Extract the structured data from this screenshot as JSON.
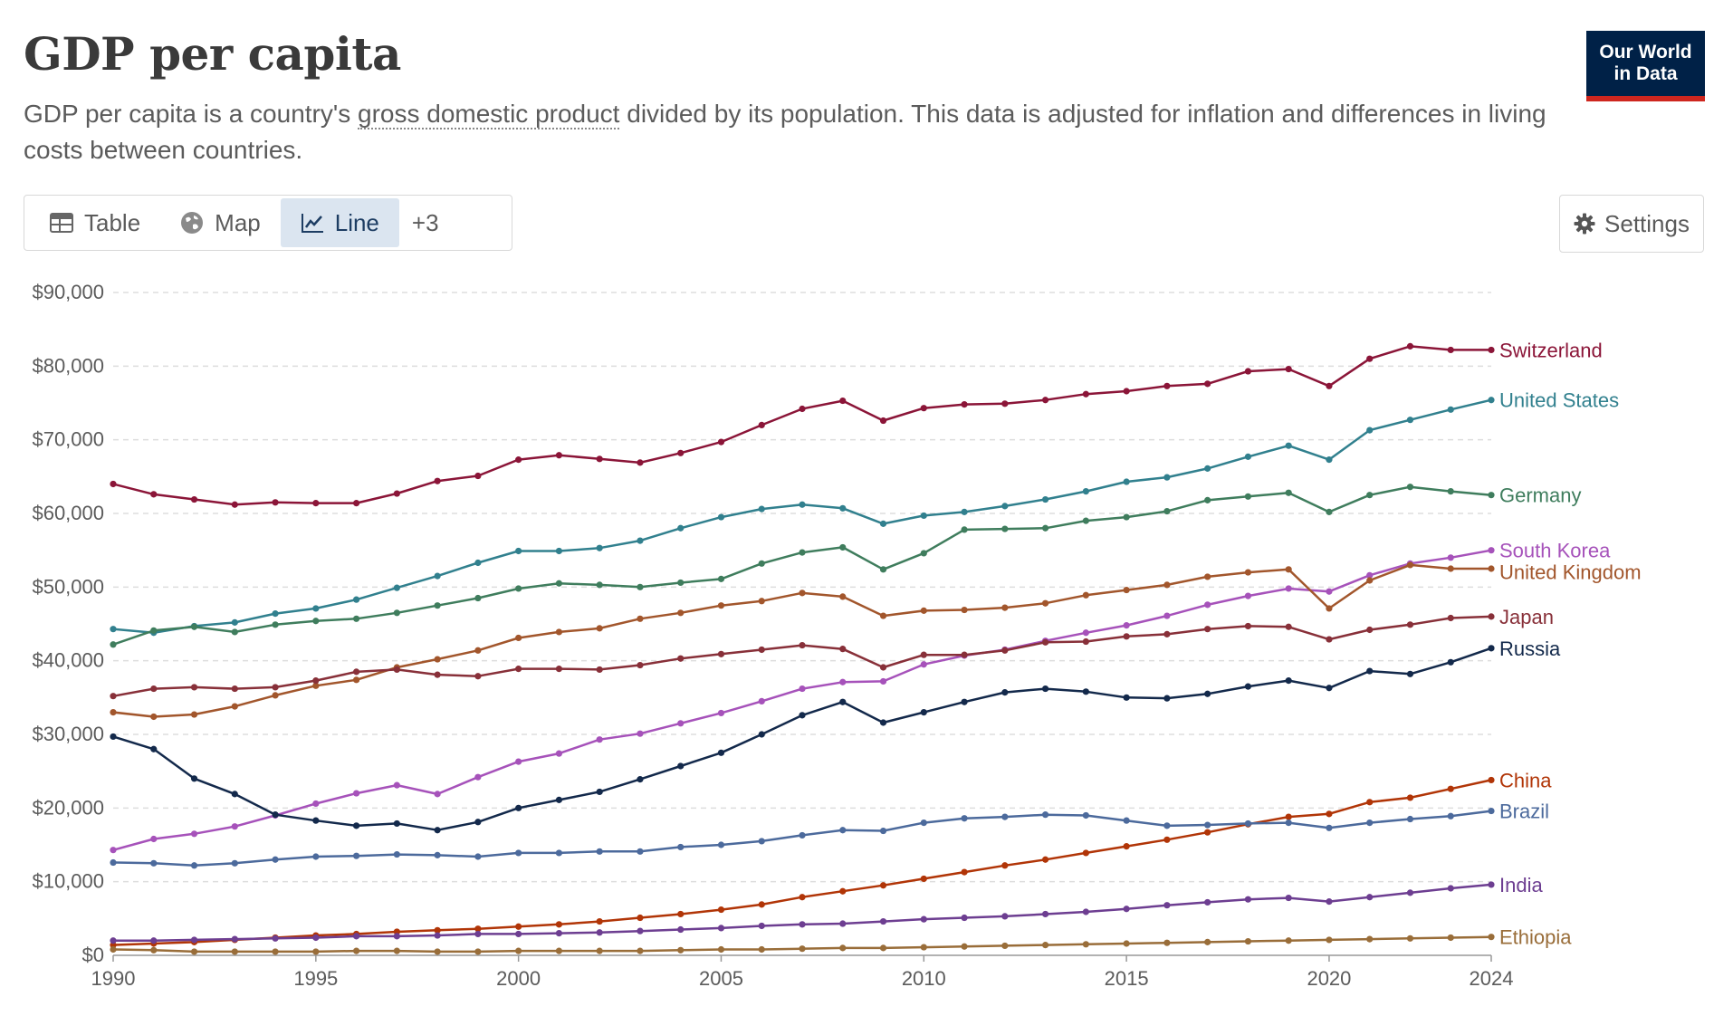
{
  "header": {
    "title": "GDP per capita",
    "subtitle_pre": "GDP per capita is a country's ",
    "subtitle_link": "gross domestic product",
    "subtitle_post": " divided by its population. This data is adjusted for inflation and differences in living costs between countries.",
    "logo_line1": "Our World",
    "logo_line2": "in Data"
  },
  "tabs": {
    "table": "Table",
    "map": "Map",
    "line": "Line",
    "more": "+3"
  },
  "settings_label": "Settings",
  "chart_data": {
    "type": "line",
    "title": "GDP per capita",
    "xlabel": "",
    "ylabel": "",
    "ylim": [
      0,
      90000
    ],
    "xlim": [
      1990,
      2024
    ],
    "yticks": [
      0,
      10000,
      20000,
      30000,
      40000,
      50000,
      60000,
      70000,
      80000,
      90000
    ],
    "ytick_labels": [
      "$0",
      "$10,000",
      "$20,000",
      "$30,000",
      "$40,000",
      "$50,000",
      "$60,000",
      "$70,000",
      "$80,000",
      "$90,000"
    ],
    "xticks": [
      1990,
      1995,
      2000,
      2005,
      2010,
      2015,
      2020,
      2024
    ],
    "xtick_labels": [
      "1990",
      "1995",
      "2000",
      "2005",
      "2010",
      "2015",
      "2020",
      "2024"
    ],
    "grid": true,
    "x": [
      1990,
      1991,
      1992,
      1993,
      1994,
      1995,
      1996,
      1997,
      1998,
      1999,
      2000,
      2001,
      2002,
      2003,
      2004,
      2005,
      2006,
      2007,
      2008,
      2009,
      2010,
      2011,
      2012,
      2013,
      2014,
      2015,
      2016,
      2017,
      2018,
      2019,
      2020,
      2021,
      2022,
      2023,
      2024
    ],
    "series": [
      {
        "name": "Switzerland",
        "color": "#8b1538",
        "values": [
          64000,
          62600,
          61900,
          61200,
          61500,
          61400,
          61400,
          62700,
          64400,
          65100,
          67300,
          67900,
          67400,
          66900,
          68200,
          69700,
          72000,
          74200,
          75300,
          72600,
          74300,
          74800,
          74900,
          75400,
          76200,
          76600,
          77300,
          77600,
          79300,
          79600,
          77300,
          81000,
          82700,
          82200,
          82200
        ]
      },
      {
        "name": "United States",
        "color": "#31808e",
        "values": [
          44300,
          43800,
          44700,
          45200,
          46400,
          47100,
          48300,
          49900,
          51500,
          53300,
          54900,
          54900,
          55300,
          56300,
          58000,
          59500,
          60600,
          61200,
          60700,
          58600,
          59700,
          60200,
          61000,
          61900,
          63000,
          64300,
          64900,
          66100,
          67700,
          69200,
          67300,
          71300,
          72700,
          74100,
          75400
        ]
      },
      {
        "name": "Germany",
        "color": "#3f7d5d",
        "values": [
          42200,
          44100,
          44600,
          43900,
          44900,
          45400,
          45700,
          46500,
          47500,
          48500,
          49800,
          50500,
          50300,
          50000,
          50600,
          51100,
          53200,
          54700,
          55400,
          52400,
          54600,
          57800,
          57900,
          58000,
          59000,
          59500,
          60300,
          61800,
          62300,
          62800,
          60200,
          62500,
          63600,
          63000,
          62500
        ]
      },
      {
        "name": "South Korea",
        "color": "#a652ba",
        "values": [
          14300,
          15800,
          16500,
          17500,
          19000,
          20600,
          22000,
          23100,
          21900,
          24200,
          26300,
          27400,
          29300,
          30100,
          31500,
          32900,
          34500,
          36200,
          37100,
          37200,
          39500,
          40700,
          41500,
          42700,
          43800,
          44800,
          46100,
          47600,
          48800,
          49800,
          49400,
          51600,
          53200,
          54000,
          55000
        ]
      },
      {
        "name": "United Kingdom",
        "color": "#a2562c",
        "values": [
          33000,
          32400,
          32700,
          33800,
          35300,
          36600,
          37400,
          39100,
          40200,
          41400,
          43100,
          43900,
          44400,
          45700,
          46500,
          47500,
          48100,
          49200,
          48700,
          46100,
          46800,
          46900,
          47200,
          47800,
          48900,
          49600,
          50300,
          51400,
          52000,
          52400,
          47100,
          50900,
          53000,
          52500,
          52500
        ]
      },
      {
        "name": "Japan",
        "color": "#883039",
        "values": [
          35200,
          36200,
          36400,
          36200,
          36400,
          37300,
          38500,
          38800,
          38100,
          37900,
          38900,
          38900,
          38800,
          39400,
          40300,
          40900,
          41500,
          42100,
          41600,
          39100,
          40800,
          40800,
          41400,
          42500,
          42600,
          43300,
          43600,
          44300,
          44700,
          44600,
          42900,
          44200,
          44900,
          45800,
          46000
        ]
      },
      {
        "name": "Russia",
        "color": "#13294b",
        "values": [
          29700,
          28000,
          24000,
          21900,
          19100,
          18300,
          17600,
          17900,
          17000,
          18100,
          20000,
          21100,
          22200,
          23900,
          25700,
          27500,
          30000,
          32600,
          34400,
          31600,
          33000,
          34400,
          35700,
          36200,
          35800,
          35000,
          34900,
          35500,
          36500,
          37300,
          36300,
          38600,
          38200,
          39800,
          41700
        ]
      },
      {
        "name": "China",
        "color": "#b13507",
        "values": [
          1400,
          1600,
          1800,
          2100,
          2400,
          2700,
          2900,
          3200,
          3400,
          3600,
          3900,
          4200,
          4600,
          5100,
          5600,
          6200,
          6900,
          7900,
          8700,
          9500,
          10400,
          11300,
          12200,
          13000,
          13900,
          14800,
          15700,
          16700,
          17800,
          18800,
          19200,
          20800,
          21400,
          22600,
          23800
        ]
      },
      {
        "name": "Brazil",
        "color": "#4c6a9c",
        "values": [
          12600,
          12500,
          12200,
          12500,
          13000,
          13400,
          13500,
          13700,
          13600,
          13400,
          13900,
          13900,
          14100,
          14100,
          14700,
          15000,
          15500,
          16300,
          17000,
          16900,
          18000,
          18600,
          18800,
          19100,
          19000,
          18300,
          17600,
          17700,
          17900,
          18000,
          17300,
          18000,
          18500,
          18900,
          19600
        ]
      },
      {
        "name": "India",
        "color": "#6d3e91",
        "values": [
          2000,
          2000,
          2100,
          2200,
          2300,
          2400,
          2600,
          2600,
          2700,
          2900,
          2900,
          3000,
          3100,
          3300,
          3500,
          3700,
          4000,
          4200,
          4300,
          4600,
          4900,
          5100,
          5300,
          5600,
          5900,
          6300,
          6800,
          7200,
          7600,
          7800,
          7300,
          7900,
          8500,
          9100,
          9600
        ]
      },
      {
        "name": "Ethiopia",
        "color": "#996d39",
        "values": [
          800,
          700,
          500,
          500,
          500,
          500,
          600,
          600,
          500,
          500,
          600,
          600,
          600,
          600,
          700,
          800,
          800,
          900,
          1000,
          1000,
          1100,
          1200,
          1300,
          1400,
          1500,
          1600,
          1700,
          1800,
          1900,
          2000,
          2100,
          2200,
          2300,
          2400,
          2500
        ]
      }
    ]
  }
}
